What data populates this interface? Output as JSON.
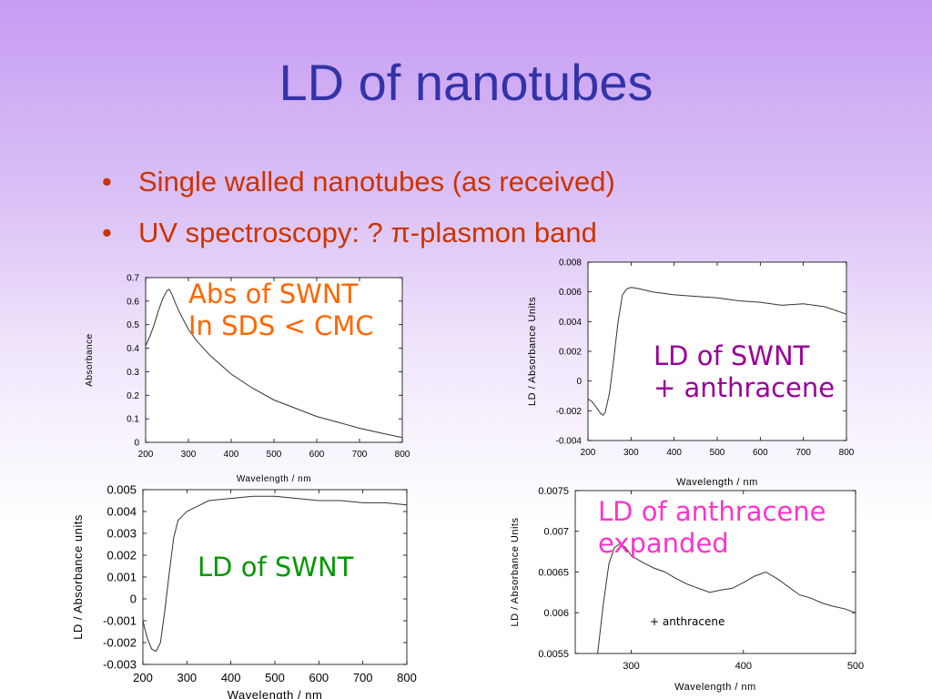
{
  "slide": {
    "title": "LD of nanotubes",
    "bullets": [
      {
        "marker": "•",
        "text": "Single walled nanotubes (as received)"
      },
      {
        "marker": "•",
        "text": "UV spectroscopy: ? π-plasmon band"
      }
    ]
  },
  "annotations": {
    "abs": {
      "line1": "Abs of SWNT",
      "line2": "In SDS < CMC",
      "color": "#ff6600"
    },
    "ld_anthracene": {
      "line1": "LD of SWNT",
      "line2": "+ anthracene",
      "color": "#990099"
    },
    "ld_swnt": {
      "line1": "LD of SWNT",
      "color": "#009900"
    },
    "ld_expanded": {
      "line1": "LD of anthracene",
      "line2": "expanded",
      "color": "#ff33cc"
    },
    "plus_anthracene": "+ anthracene"
  },
  "chart_data": [
    {
      "type": "line",
      "xlabel": "Wavelength / nm",
      "ylabel": "Absorbance",
      "xlim": [
        200,
        800
      ],
      "ylim": [
        0,
        0.7
      ],
      "xticks": [
        200,
        300,
        400,
        500,
        600,
        700,
        800
      ],
      "xtick_labels": [
        "200",
        "300",
        "400",
        "500",
        "600",
        "700",
        "800"
      ],
      "yticks": [
        0,
        0.1,
        0.2,
        0.3,
        0.4,
        0.5,
        0.6,
        0.7
      ],
      "ytick_labels": [
        "0",
        "0.1",
        "0.2",
        "0.3",
        "0.4",
        "0.5",
        "0.6",
        "0.7"
      ],
      "series": [
        {
          "x": [
            200,
            210,
            220,
            230,
            240,
            250,
            255,
            260,
            270,
            280,
            300,
            320,
            350,
            400,
            450,
            500,
            550,
            600,
            650,
            700,
            750,
            800
          ],
          "values": [
            0.41,
            0.45,
            0.5,
            0.56,
            0.61,
            0.645,
            0.65,
            0.635,
            0.59,
            0.55,
            0.48,
            0.43,
            0.37,
            0.29,
            0.23,
            0.18,
            0.145,
            0.11,
            0.085,
            0.06,
            0.04,
            0.02
          ]
        }
      ]
    },
    {
      "type": "line",
      "xlabel": "Wavelength / nm",
      "ylabel": "LD / Absorbance Units",
      "xlim": [
        200,
        800
      ],
      "ylim": [
        -0.004,
        0.008
      ],
      "xticks": [
        200,
        300,
        400,
        500,
        600,
        700,
        800
      ],
      "xtick_labels": [
        "200",
        "300",
        "400",
        "500",
        "600",
        "700",
        "800"
      ],
      "yticks": [
        -0.004,
        -0.002,
        0,
        0.002,
        0.004,
        0.006,
        0.008
      ],
      "ytick_labels": [
        "-0.004",
        "-0.002",
        "0",
        "0.002",
        "0.004",
        "0.006",
        "0.008"
      ],
      "series": [
        {
          "x": [
            200,
            210,
            220,
            230,
            235,
            240,
            250,
            260,
            270,
            280,
            290,
            300,
            320,
            350,
            400,
            450,
            500,
            550,
            600,
            650,
            700,
            750,
            800
          ],
          "values": [
            -0.0012,
            -0.0014,
            -0.0018,
            -0.0022,
            -0.0023,
            -0.0021,
            -0.0008,
            0.0015,
            0.004,
            0.0058,
            0.0062,
            0.0063,
            0.0062,
            0.006,
            0.0058,
            0.0057,
            0.0056,
            0.0054,
            0.0053,
            0.0051,
            0.0052,
            0.005,
            0.0045
          ]
        }
      ]
    },
    {
      "type": "line",
      "xlabel": "Wavelength / nm",
      "ylabel": "LD / Absorbance units",
      "xlim": [
        200,
        800
      ],
      "ylim": [
        -0.003,
        0.005
      ],
      "xticks": [
        200,
        300,
        400,
        500,
        600,
        700,
        800
      ],
      "xtick_labels": [
        "200",
        "300",
        "400",
        "500",
        "600",
        "700",
        "800"
      ],
      "yticks": [
        -0.003,
        -0.002,
        -0.001,
        0,
        0.001,
        0.002,
        0.003,
        0.004,
        0.005
      ],
      "ytick_labels": [
        "-0.003",
        "-0.002",
        "-0.001",
        "0",
        "0.001",
        "0.002",
        "0.003",
        "0.004",
        "0.005"
      ],
      "series": [
        {
          "x": [
            200,
            210,
            220,
            230,
            240,
            250,
            260,
            270,
            280,
            290,
            300,
            320,
            350,
            400,
            450,
            500,
            550,
            600,
            650,
            700,
            750,
            800
          ],
          "values": [
            -0.001,
            -0.0018,
            -0.0023,
            -0.0024,
            -0.002,
            -0.0005,
            0.0012,
            0.0028,
            0.0036,
            0.0038,
            0.004,
            0.0042,
            0.0045,
            0.0046,
            0.0047,
            0.0047,
            0.0046,
            0.0045,
            0.0045,
            0.0044,
            0.0044,
            0.0043
          ]
        }
      ]
    },
    {
      "type": "line",
      "xlabel": "Wavelength / nm",
      "ylabel": "LD / Absorbance Units",
      "xlim": [
        250,
        500
      ],
      "ylim": [
        0.0055,
        0.0075
      ],
      "xticks": [
        300,
        400,
        500
      ],
      "xtick_labels": [
        "300",
        "400",
        "500"
      ],
      "yticks": [
        0.0055,
        0.006,
        0.0065,
        0.007,
        0.0075
      ],
      "ytick_labels": [
        "0.0055",
        "0.006",
        "0.0065",
        "0.007",
        "0.0075"
      ],
      "series": [
        {
          "x": [
            270,
            275,
            280,
            285,
            290,
            295,
            300,
            310,
            320,
            330,
            340,
            350,
            360,
            370,
            380,
            390,
            400,
            410,
            420,
            430,
            440,
            450,
            460,
            470,
            480,
            490,
            500
          ],
          "values": [
            0.0055,
            0.0061,
            0.0066,
            0.0068,
            0.00685,
            0.0068,
            0.0067,
            0.00662,
            0.00655,
            0.0065,
            0.00642,
            0.00635,
            0.0063,
            0.00625,
            0.00628,
            0.0063,
            0.00637,
            0.00645,
            0.0065,
            0.00642,
            0.00632,
            0.00622,
            0.00618,
            0.00612,
            0.00608,
            0.00605,
            0.006
          ]
        }
      ]
    }
  ]
}
